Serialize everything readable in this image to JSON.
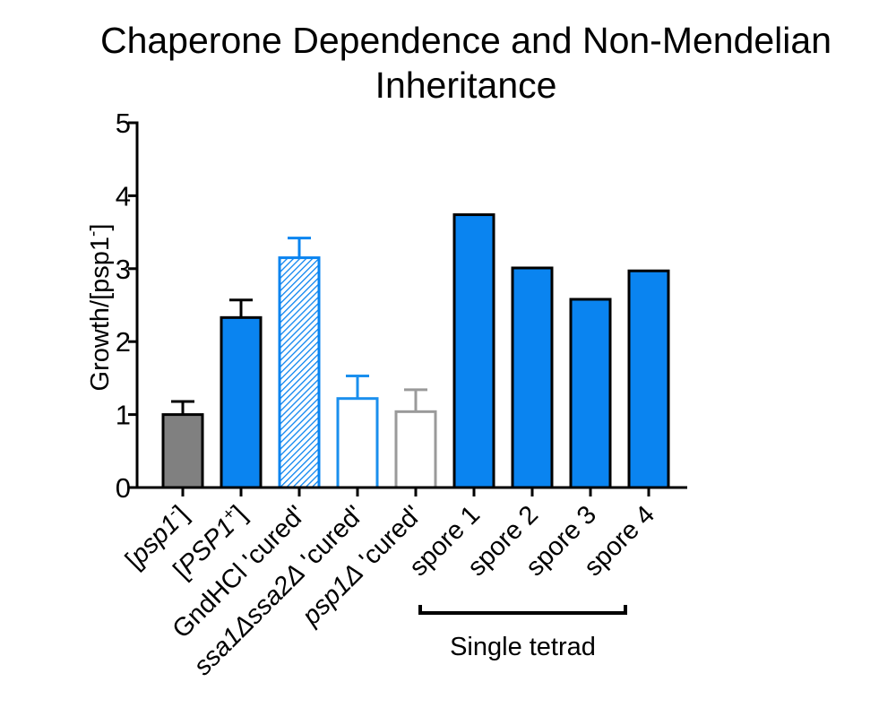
{
  "chart_data": {
    "type": "bar",
    "title_lines": [
      "Chaperone Dependence and Non-Mendelian",
      "Inheritance"
    ],
    "ylabel": {
      "base": "Growth/[psp1",
      "sup": "-",
      "end": "]"
    },
    "ylim": [
      0,
      5
    ],
    "yticks": [
      "0",
      "1",
      "2",
      "3",
      "4",
      "5"
    ],
    "bars": [
      {
        "name": "psp1-minus",
        "label": {
          "pre": "[",
          "it": "psp1",
          "sup": "-",
          "post": "]"
        },
        "value": 1.0,
        "error": 0.18,
        "style": "solid",
        "color": "#808080"
      },
      {
        "name": "PSP1-plus",
        "label": {
          "pre": "[",
          "it": "PSP1",
          "sup": "+",
          "post": "]"
        },
        "value": 2.33,
        "error": 0.24,
        "style": "solid",
        "color": "#0a84f0"
      },
      {
        "name": "gndhcl-cured",
        "label": {
          "pre": "GndHCl 'cured'",
          "it": "",
          "sup": "",
          "post": ""
        },
        "value": 3.15,
        "error": 0.27,
        "style": "hatched",
        "color": "#0a84f0"
      },
      {
        "name": "ssa1-ssa2-cured",
        "label": {
          "pre": "",
          "it": "ssa1Δssa2Δ",
          "sup": "",
          "post": " 'cured'"
        },
        "value": 1.22,
        "error": 0.31,
        "style": "open",
        "color": "#1a8fee"
      },
      {
        "name": "psp1-delta-cured",
        "label": {
          "pre": "",
          "it": "psp1Δ",
          "sup": "",
          "post": " 'cured'"
        },
        "value": 1.04,
        "error": 0.3,
        "style": "open",
        "color": "#9a9a9a"
      },
      {
        "name": "spore-1",
        "label": {
          "pre": "spore 1",
          "it": "",
          "sup": "",
          "post": ""
        },
        "value": 3.74,
        "error": null,
        "style": "solid",
        "color": "#0a84f0"
      },
      {
        "name": "spore-2",
        "label": {
          "pre": "spore 2",
          "it": "",
          "sup": "",
          "post": ""
        },
        "value": 3.01,
        "error": null,
        "style": "solid",
        "color": "#0a84f0"
      },
      {
        "name": "spore-3",
        "label": {
          "pre": "spore 3",
          "it": "",
          "sup": "",
          "post": ""
        },
        "value": 2.58,
        "error": null,
        "style": "solid",
        "color": "#0a84f0"
      },
      {
        "name": "spore-4",
        "label": {
          "pre": "spore 4",
          "it": "",
          "sup": "",
          "post": ""
        },
        "value": 2.97,
        "error": null,
        "style": "solid",
        "color": "#0a84f0"
      }
    ],
    "group_annotation": {
      "label": "Single tetrad",
      "from_bar": 5,
      "to_bar": 8
    }
  }
}
